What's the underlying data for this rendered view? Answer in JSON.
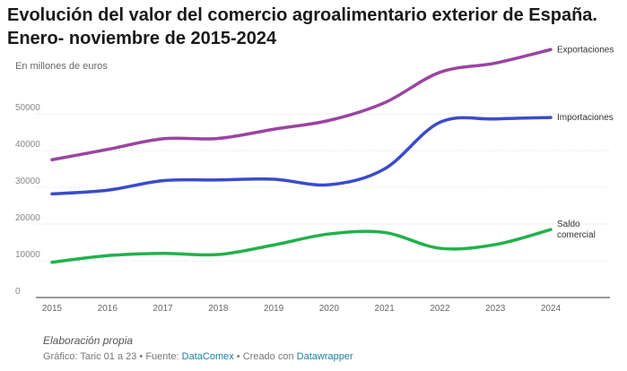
{
  "title": "Evolución del valor del comercio agroalimentario exterior de España. Enero- noviembre de 2015-2024",
  "chart_data": {
    "type": "line",
    "title": "Evolución del valor del comercio agroalimentario exterior de España. Enero- noviembre de 2015-2024",
    "unit_label": "En millones de euros",
    "x": [
      2015,
      2016,
      2017,
      2018,
      2019,
      2020,
      2021,
      2022,
      2023,
      2024
    ],
    "xlim": [
      2015,
      2024
    ],
    "ylim": [
      0,
      60000
    ],
    "yticks": [
      "0",
      "10000",
      "20000",
      "30000",
      "40000",
      "50000"
    ],
    "ytick_values": [
      0,
      10000,
      20000,
      30000,
      40000,
      50000
    ],
    "grid": true,
    "legend": "direct labels at line ends",
    "series": [
      {
        "name": "Exportaciones",
        "color": "#9b44a1",
        "values": [
          37500,
          40300,
          43200,
          43300,
          45800,
          48200,
          53000,
          61300,
          63800,
          67500
        ]
      },
      {
        "name": "Importaciones",
        "color": "#3a4bcb",
        "values": [
          28200,
          29200,
          31800,
          32000,
          32200,
          30700,
          35000,
          47700,
          48600,
          49000
        ]
      },
      {
        "name": "Saldo comercial",
        "color": "#22b14c",
        "values": [
          9600,
          11400,
          12000,
          11700,
          14300,
          17300,
          17700,
          13400,
          14400,
          18500
        ]
      }
    ]
  },
  "footer": {
    "note": "Elaboración propia",
    "source_prefix": "Gráfico: Taric 01 a 23 • Fuente: ",
    "source_link": "DataComex",
    "created_prefix": " • Creado con ",
    "created_link": "Datawrapper"
  }
}
